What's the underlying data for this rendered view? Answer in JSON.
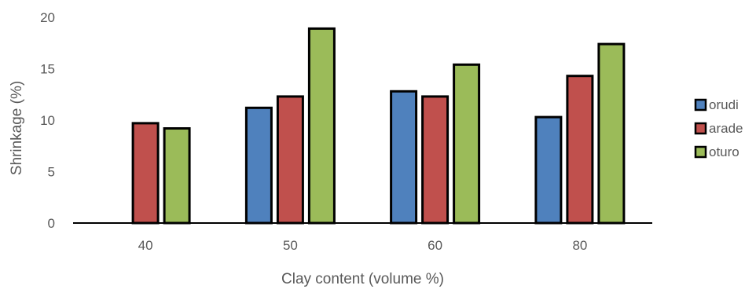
{
  "chart_data": {
    "type": "bar",
    "title": "",
    "xlabel": "Clay content (volume %)",
    "ylabel": "Shrinkage (%)",
    "categories": [
      "40",
      "50",
      "60",
      "80"
    ],
    "ylim": [
      0,
      20
    ],
    "yticks": [
      "0",
      "5",
      "10",
      "15",
      "20"
    ],
    "grid": false,
    "legend_position": "right",
    "series": [
      {
        "name": "orudi",
        "color": "#4f81bd",
        "values": [
          null,
          11.2,
          12.8,
          10.3
        ]
      },
      {
        "name": "arade",
        "color": "#c0504d",
        "values": [
          9.7,
          12.3,
          12.3,
          14.3
        ]
      },
      {
        "name": "oturo",
        "color": "#9bbb59",
        "values": [
          9.2,
          18.9,
          15.4,
          17.4
        ]
      }
    ]
  }
}
